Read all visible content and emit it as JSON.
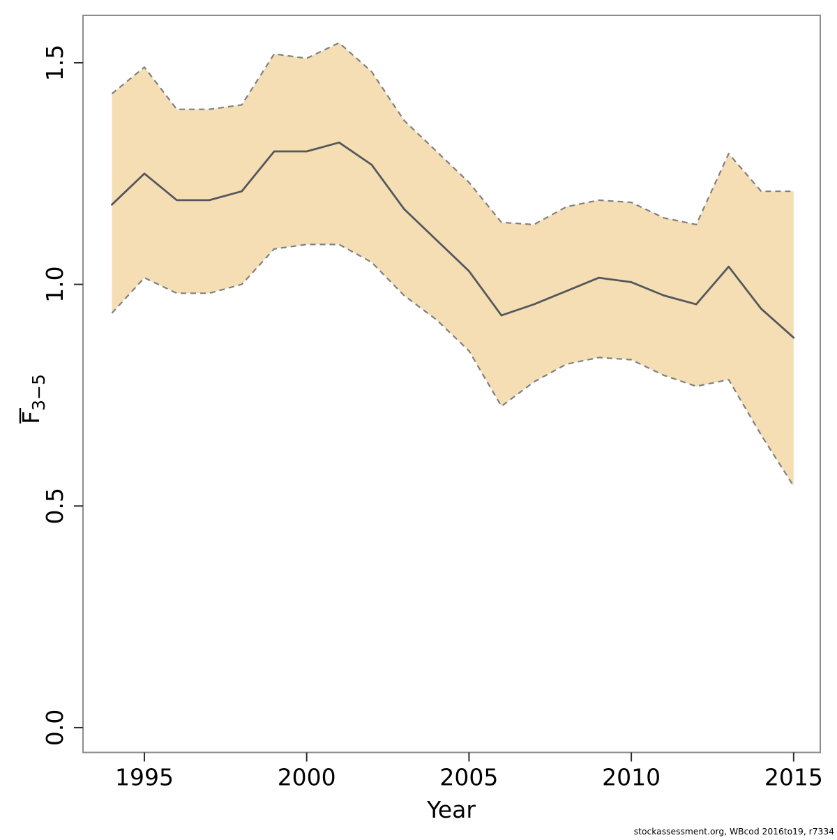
{
  "chart_data": {
    "type": "line",
    "title": "",
    "xlabel": "Year",
    "ylabel": "F̄3−5",
    "x": [
      1994,
      1995,
      1996,
      1997,
      1998,
      1999,
      2000,
      2001,
      2002,
      2003,
      2004,
      2005,
      2006,
      2007,
      2008,
      2009,
      2010,
      2011,
      2012,
      2013,
      2014,
      2015
    ],
    "series": [
      {
        "name": "Fbar estimate",
        "role": "line",
        "values": [
          1.18,
          1.25,
          1.19,
          1.19,
          1.21,
          1.3,
          1.3,
          1.32,
          1.27,
          1.17,
          1.1,
          1.03,
          0.93,
          0.955,
          0.985,
          1.015,
          1.005,
          0.975,
          0.955,
          1.04,
          0.945,
          0.88
        ]
      },
      {
        "name": "CI upper",
        "role": "band-upper",
        "values": [
          1.43,
          1.49,
          1.395,
          1.395,
          1.405,
          1.52,
          1.51,
          1.545,
          1.48,
          1.37,
          1.3,
          1.23,
          1.14,
          1.135,
          1.175,
          1.19,
          1.185,
          1.15,
          1.135,
          1.295,
          1.21,
          1.21
        ]
      },
      {
        "name": "CI lower",
        "role": "band-lower",
        "values": [
          0.935,
          1.015,
          0.98,
          0.98,
          1.0,
          1.08,
          1.09,
          1.09,
          1.05,
          0.975,
          0.92,
          0.85,
          0.725,
          0.78,
          0.82,
          0.835,
          0.83,
          0.795,
          0.77,
          0.785,
          0.66,
          0.545
        ]
      }
    ],
    "xticks": [
      1995,
      2000,
      2005,
      2010,
      2015
    ],
    "yticks": [
      0,
      0.5,
      1,
      1.5
    ],
    "ytick_labels": [
      "0.0",
      "0.5",
      "1.0",
      "1.5"
    ],
    "xlim": [
      1993.11,
      2015.82
    ],
    "ylim": [
      -0.056,
      1.607
    ],
    "grid": false,
    "legend": false,
    "colors": {
      "band_fill": "#f5deb3",
      "band_edge": "#7e8084",
      "line": "#54585c",
      "box": "#8a8c8e",
      "tick": "#2b2b2b",
      "text": "#000000"
    }
  },
  "axes": {
    "x_title": "Year",
    "y_title_main": "F",
    "y_title_sub": "3−5"
  },
  "footer": {
    "credit": "stockassessment.org, WBcod 2016to19, r7334"
  }
}
